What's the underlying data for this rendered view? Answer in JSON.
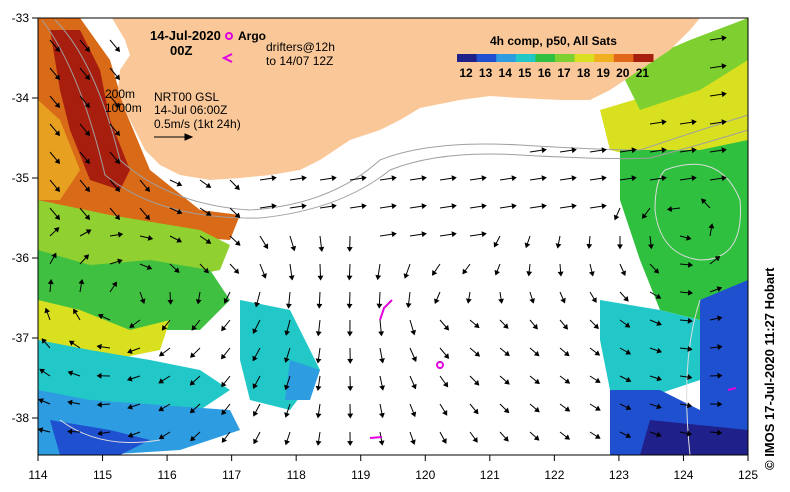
{
  "header": {
    "date": "14-Jul-2020",
    "time": "00Z"
  },
  "legend_argo": {
    "argo_label": "Argo",
    "drifters_label": "drifters@12h",
    "drifters_to": "to 14/07 12Z"
  },
  "legend_contours": {
    "c200": "200m",
    "c1000": "1000m"
  },
  "legend_current": {
    "product": "NRT00 GSL",
    "product_time": "14-Jul 06:00Z",
    "scale": "0.5m/s (1kt 24h)"
  },
  "colorbar": {
    "title": "4h comp, p50, All Sats",
    "ticks": [
      "12",
      "13",
      "14",
      "15",
      "16",
      "17",
      "18",
      "19",
      "20",
      "21"
    ],
    "colors": [
      "#20208a",
      "#1e50d0",
      "#2d9ce0",
      "#22c8c8",
      "#30c040",
      "#7ed030",
      "#d8e020",
      "#f0b020",
      "#e06818",
      "#a81e0e"
    ]
  },
  "axes": {
    "x_ticks": [
      "114",
      "115",
      "116",
      "117",
      "118",
      "119",
      "120",
      "121",
      "122",
      "123",
      "124",
      "125"
    ],
    "y_ticks": [
      "-33",
      "-34",
      "-35",
      "-36",
      "-37",
      "-38"
    ]
  },
  "credit": "© IMOS 17-Jul-2020 11:27 Hobart",
  "colors": {
    "land": "#fac898",
    "marker": "#e000e0"
  },
  "icons": [
    "argo-float-marker-icon",
    "drifter-track-icon",
    "current-scale-arrow-icon"
  ]
}
